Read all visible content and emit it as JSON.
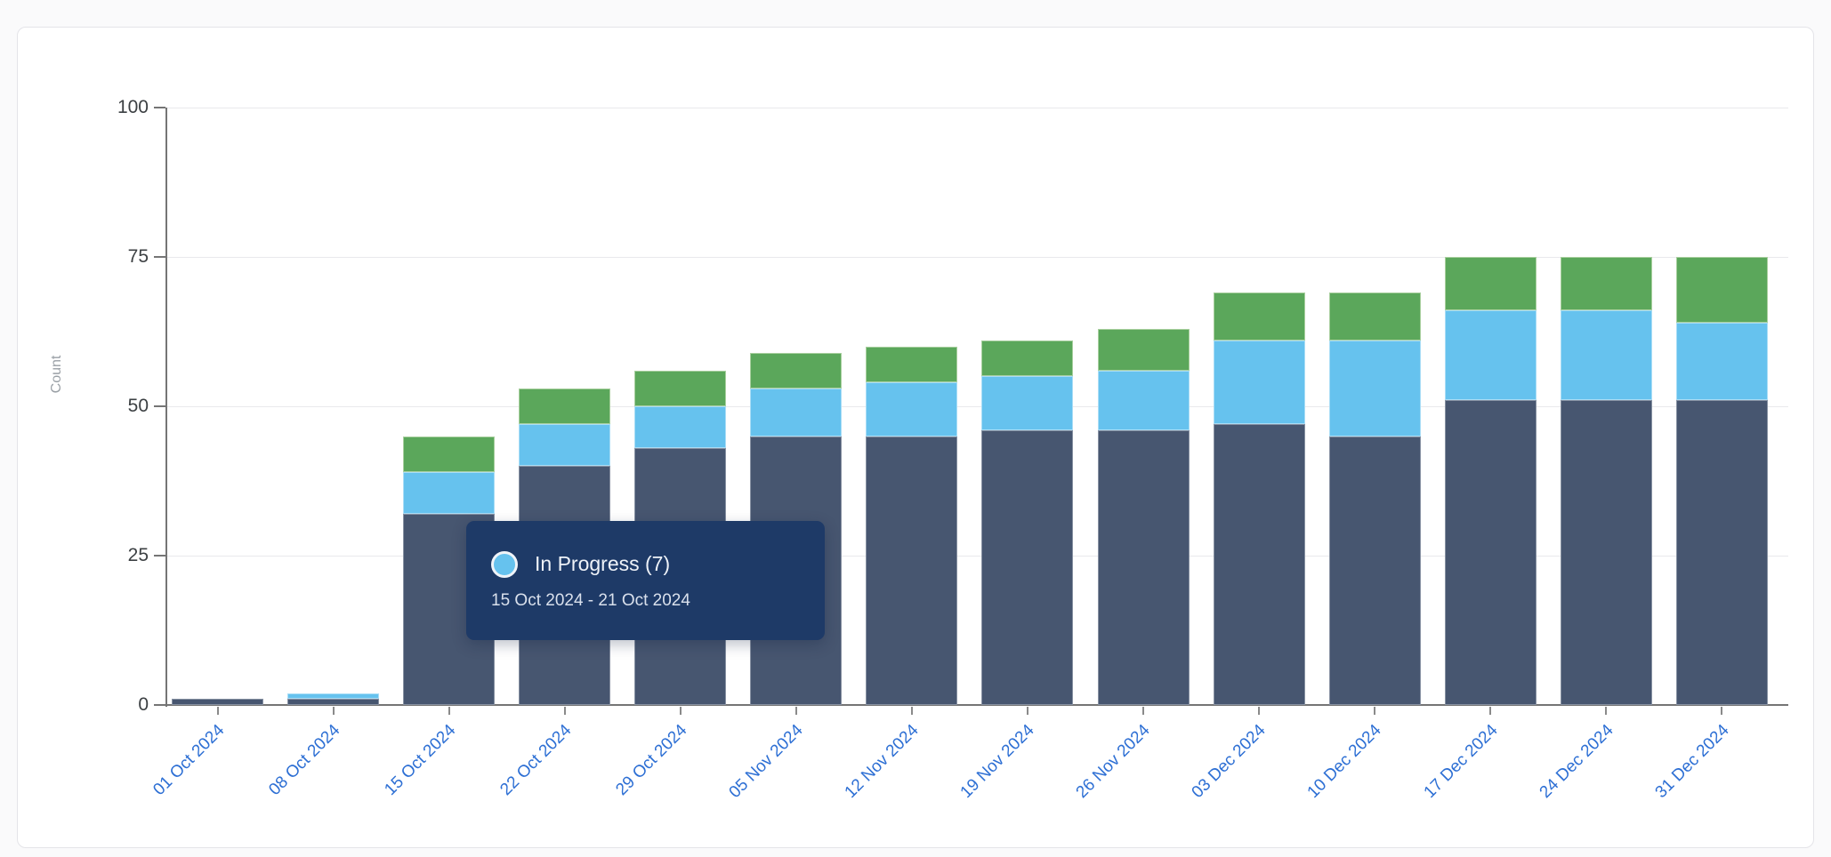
{
  "y_axis": {
    "label": "Count",
    "ticks": [
      "0",
      "25",
      "50",
      "75",
      "100"
    ]
  },
  "tooltip": {
    "series_label": "In Progress",
    "count": "7",
    "title": "In Progress (7)",
    "date_range": "15 Oct 2024 - 21 Oct 2024",
    "dot_color": "#66C2EE",
    "background": "#1E3A67"
  },
  "colors": {
    "bar_dark": "#475670",
    "bar_in_progress": "#66C2EE",
    "bar_green": "#5BA75B",
    "x_label_text": "#2D6FD4",
    "y_tick_text": "#3C4043",
    "axis": "#757575",
    "gridline": "#E9E9EC",
    "card_border": "#E4E4E8",
    "page_background": "#FAFAFB"
  },
  "chart_data": {
    "type": "bar",
    "stacked": true,
    "title": "",
    "xlabel": "",
    "ylabel": "Count",
    "ylim": [
      0,
      100
    ],
    "y_ticks": [
      0,
      25,
      50,
      75,
      100
    ],
    "grid": true,
    "legend_position": "none",
    "categories": [
      "01 Oct 2024",
      "08 Oct 2024",
      "15 Oct 2024",
      "22 Oct 2024",
      "29 Oct 2024",
      "05 Nov 2024",
      "12 Nov 2024",
      "19 Nov 2024",
      "26 Nov 2024",
      "03 Dec 2024",
      "10 Dec 2024",
      "17 Dec 2024",
      "24 Dec 2024",
      "31 Dec 2024"
    ],
    "series": [
      {
        "name": "",
        "role": "bottom-dark",
        "color": "#475670",
        "values": [
          1,
          1,
          32,
          40,
          43,
          45,
          45,
          46,
          46,
          47,
          45,
          51,
          51,
          51
        ]
      },
      {
        "name": "In Progress",
        "role": "middle-blue",
        "color": "#66C2EE",
        "values": [
          0,
          1,
          7,
          7,
          7,
          8,
          9,
          9,
          10,
          14,
          16,
          15,
          15,
          13
        ]
      },
      {
        "name": "",
        "role": "top-green",
        "color": "#5BA75B",
        "values": [
          0,
          0,
          6,
          6,
          6,
          6,
          6,
          6,
          7,
          8,
          8,
          9,
          9,
          11
        ]
      }
    ],
    "totals": [
      1,
      2,
      45,
      53,
      56,
      59,
      60,
      61,
      63,
      69,
      69,
      75,
      75,
      75
    ]
  }
}
